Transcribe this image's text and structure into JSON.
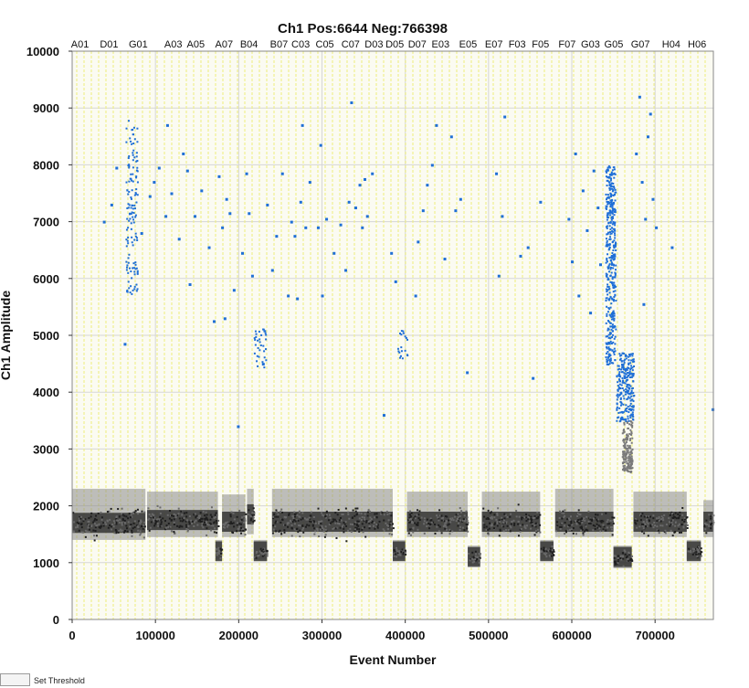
{
  "chart_data": {
    "type": "scatter",
    "title": "Ch1 Pos:6644 Neg:766398",
    "xlabel": "Event Number",
    "ylabel": "Ch1 Amplitude",
    "xlim": [
      0,
      770000
    ],
    "ylim": [
      0,
      10000
    ],
    "x_ticks": [
      0,
      100000,
      200000,
      300000,
      400000,
      500000,
      600000,
      700000
    ],
    "y_ticks": [
      0,
      1000,
      2000,
      3000,
      4000,
      5000,
      6000,
      7000,
      8000,
      9000,
      10000
    ],
    "grid": true,
    "well_labels": [
      "A01",
      "D01",
      "G01",
      "A03",
      "A05",
      "A07",
      "B04",
      "B07",
      "C03",
      "C05",
      "C07",
      "D03",
      "D05",
      "D07",
      "E03",
      "E05",
      "E07",
      "F03",
      "F05",
      "F07",
      "G03",
      "G05",
      "G07",
      "H04",
      "H06"
    ],
    "well_label_x": [
      5000,
      40000,
      75000,
      117000,
      144000,
      178000,
      208000,
      244000,
      270000,
      299000,
      330000,
      358000,
      383000,
      410000,
      438000,
      471000,
      502000,
      530000,
      558000,
      590000,
      618000,
      646000,
      678000,
      715000,
      746000
    ],
    "threshold": 3500,
    "series": [
      {
        "class": "negative",
        "color": "#3a3a3a",
        "segments": [
          {
            "x": [
              0,
              88000
            ],
            "y_center": 1700,
            "y_spread": [
              1400,
              2300
            ]
          },
          {
            "x": [
              90000,
              175000
            ],
            "y_center": 1750,
            "y_spread": [
              1450,
              2250
            ]
          },
          {
            "x": [
              172000,
              180000
            ],
            "y_center": 1200,
            "y_spread": [
              1050,
              1400
            ]
          },
          {
            "x": [
              180000,
              208000
            ],
            "y_center": 1720,
            "y_spread": [
              1450,
              2200
            ]
          },
          {
            "x": [
              210000,
              218000
            ],
            "y_center": 1850,
            "y_spread": [
              1500,
              2300
            ]
          },
          {
            "x": [
              218000,
              234000
            ],
            "y_center": 1200,
            "y_spread": [
              1050,
              1400
            ]
          },
          {
            "x": [
              240000,
              385000
            ],
            "y_center": 1720,
            "y_spread": [
              1450,
              2300
            ]
          },
          {
            "x": [
              385000,
              400000
            ],
            "y_center": 1200,
            "y_spread": [
              1050,
              1400
            ]
          },
          {
            "x": [
              402000,
              475000
            ],
            "y_center": 1720,
            "y_spread": [
              1450,
              2250
            ]
          },
          {
            "x": [
              475000,
              490000
            ],
            "y_center": 1100,
            "y_spread": [
              950,
              1300
            ]
          },
          {
            "x": [
              492000,
              562000
            ],
            "y_center": 1720,
            "y_spread": [
              1450,
              2250
            ]
          },
          {
            "x": [
              562000,
              578000
            ],
            "y_center": 1200,
            "y_spread": [
              1050,
              1400
            ]
          },
          {
            "x": [
              580000,
              650000
            ],
            "y_center": 1720,
            "y_spread": [
              1450,
              2300
            ]
          },
          {
            "x": [
              650000,
              672000
            ],
            "y_center": 1100,
            "y_spread": [
              900,
              1300
            ]
          },
          {
            "x": [
              674000,
              738000
            ],
            "y_center": 1720,
            "y_spread": [
              1450,
              2250
            ]
          },
          {
            "x": [
              738000,
              755000
            ],
            "y_center": 1200,
            "y_spread": [
              1050,
              1400
            ]
          },
          {
            "x": [
              758000,
              770000
            ],
            "y_center": 1720,
            "y_spread": [
              1450,
              2100
            ]
          }
        ]
      },
      {
        "class": "positive",
        "color": "#1f6fd6",
        "clusters": [
          {
            "x": [
              640000,
              652000
            ],
            "y": [
              4500,
              8000
            ],
            "density": "high"
          },
          {
            "x": [
              653000,
              674000
            ],
            "y": [
              3500,
              4700
            ],
            "density": "high"
          },
          {
            "x": [
              390000,
              402000
            ],
            "y": [
              4600,
              5100
            ],
            "density": "medium"
          },
          {
            "x": [
              218000,
              232000
            ],
            "y": [
              4450,
              5200
            ],
            "density": "medium"
          },
          {
            "x": [
              64000,
              78000
            ],
            "y": [
              5700,
              8800
            ],
            "density": "medium"
          }
        ],
        "points": [
          {
            "x": 38000,
            "y": 7000
          },
          {
            "x": 47000,
            "y": 7300
          },
          {
            "x": 53000,
            "y": 7950
          },
          {
            "x": 63000,
            "y": 4850
          },
          {
            "x": 83000,
            "y": 6800
          },
          {
            "x": 93000,
            "y": 7450
          },
          {
            "x": 98000,
            "y": 7700
          },
          {
            "x": 104000,
            "y": 7950
          },
          {
            "x": 112000,
            "y": 7100
          },
          {
            "x": 114000,
            "y": 8700
          },
          {
            "x": 119000,
            "y": 7500
          },
          {
            "x": 128000,
            "y": 6700
          },
          {
            "x": 133000,
            "y": 8200
          },
          {
            "x": 138000,
            "y": 7900
          },
          {
            "x": 141000,
            "y": 5900
          },
          {
            "x": 147000,
            "y": 7100
          },
          {
            "x": 155000,
            "y": 7550
          },
          {
            "x": 164000,
            "y": 6550
          },
          {
            "x": 170000,
            "y": 5250
          },
          {
            "x": 176000,
            "y": 7800
          },
          {
            "x": 180000,
            "y": 6900
          },
          {
            "x": 183000,
            "y": 5300
          },
          {
            "x": 185000,
            "y": 7400
          },
          {
            "x": 189000,
            "y": 7150
          },
          {
            "x": 194000,
            "y": 5800
          },
          {
            "x": 199000,
            "y": 3400
          },
          {
            "x": 204000,
            "y": 6450
          },
          {
            "x": 209000,
            "y": 7850
          },
          {
            "x": 212000,
            "y": 7150
          },
          {
            "x": 216000,
            "y": 6050
          },
          {
            "x": 229000,
            "y": 4500
          },
          {
            "x": 234000,
            "y": 7300
          },
          {
            "x": 240000,
            "y": 6150
          },
          {
            "x": 245000,
            "y": 6750
          },
          {
            "x": 252000,
            "y": 7850
          },
          {
            "x": 259000,
            "y": 5700
          },
          {
            "x": 263000,
            "y": 7000
          },
          {
            "x": 267000,
            "y": 6750
          },
          {
            "x": 270000,
            "y": 5650
          },
          {
            "x": 274000,
            "y": 7350
          },
          {
            "x": 276000,
            "y": 8700
          },
          {
            "x": 280000,
            "y": 6900
          },
          {
            "x": 285000,
            "y": 7700
          },
          {
            "x": 295000,
            "y": 6900
          },
          {
            "x": 298000,
            "y": 8350
          },
          {
            "x": 300000,
            "y": 5700
          },
          {
            "x": 305000,
            "y": 7050
          },
          {
            "x": 314000,
            "y": 6450
          },
          {
            "x": 322000,
            "y": 6950
          },
          {
            "x": 328000,
            "y": 6150
          },
          {
            "x": 332000,
            "y": 7350
          },
          {
            "x": 335000,
            "y": 9100
          },
          {
            "x": 340000,
            "y": 7250
          },
          {
            "x": 345000,
            "y": 7650
          },
          {
            "x": 348000,
            "y": 6900
          },
          {
            "x": 351000,
            "y": 7750
          },
          {
            "x": 354000,
            "y": 7100
          },
          {
            "x": 360000,
            "y": 7850
          },
          {
            "x": 374000,
            "y": 3600
          },
          {
            "x": 383000,
            "y": 6450
          },
          {
            "x": 388000,
            "y": 5950
          },
          {
            "x": 412000,
            "y": 5700
          },
          {
            "x": 415000,
            "y": 6650
          },
          {
            "x": 421000,
            "y": 7200
          },
          {
            "x": 426000,
            "y": 7650
          },
          {
            "x": 432000,
            "y": 8000
          },
          {
            "x": 437000,
            "y": 8700
          },
          {
            "x": 447000,
            "y": 6350
          },
          {
            "x": 455000,
            "y": 8500
          },
          {
            "x": 460000,
            "y": 7200
          },
          {
            "x": 466000,
            "y": 7400
          },
          {
            "x": 474000,
            "y": 4350
          },
          {
            "x": 509000,
            "y": 7850
          },
          {
            "x": 512000,
            "y": 6050
          },
          {
            "x": 516000,
            "y": 7100
          },
          {
            "x": 519000,
            "y": 8850
          },
          {
            "x": 538000,
            "y": 6400
          },
          {
            "x": 547000,
            "y": 6550
          },
          {
            "x": 553000,
            "y": 4250
          },
          {
            "x": 562000,
            "y": 7350
          },
          {
            "x": 596000,
            "y": 7050
          },
          {
            "x": 600000,
            "y": 6300
          },
          {
            "x": 604000,
            "y": 8200
          },
          {
            "x": 608000,
            "y": 5700
          },
          {
            "x": 613000,
            "y": 7550
          },
          {
            "x": 618000,
            "y": 6850
          },
          {
            "x": 622000,
            "y": 5400
          },
          {
            "x": 626000,
            "y": 7900
          },
          {
            "x": 631000,
            "y": 7250
          },
          {
            "x": 634000,
            "y": 6250
          },
          {
            "x": 677000,
            "y": 8200
          },
          {
            "x": 681000,
            "y": 9200
          },
          {
            "x": 684000,
            "y": 7700
          },
          {
            "x": 686000,
            "y": 5550
          },
          {
            "x": 688000,
            "y": 7050
          },
          {
            "x": 691000,
            "y": 8500
          },
          {
            "x": 694000,
            "y": 8900
          },
          {
            "x": 697000,
            "y": 7400
          },
          {
            "x": 701000,
            "y": 6900
          },
          {
            "x": 720000,
            "y": 6550
          },
          {
            "x": 769000,
            "y": 3700
          }
        ]
      },
      {
        "class": "intermediate",
        "color": "#7a7a7a",
        "clusters": [
          {
            "x": [
              660000,
              672000
            ],
            "y": [
              2600,
              3550
            ],
            "density": "medium"
          }
        ]
      }
    ]
  },
  "footer": {
    "threshold_label": "Set Threshold"
  }
}
